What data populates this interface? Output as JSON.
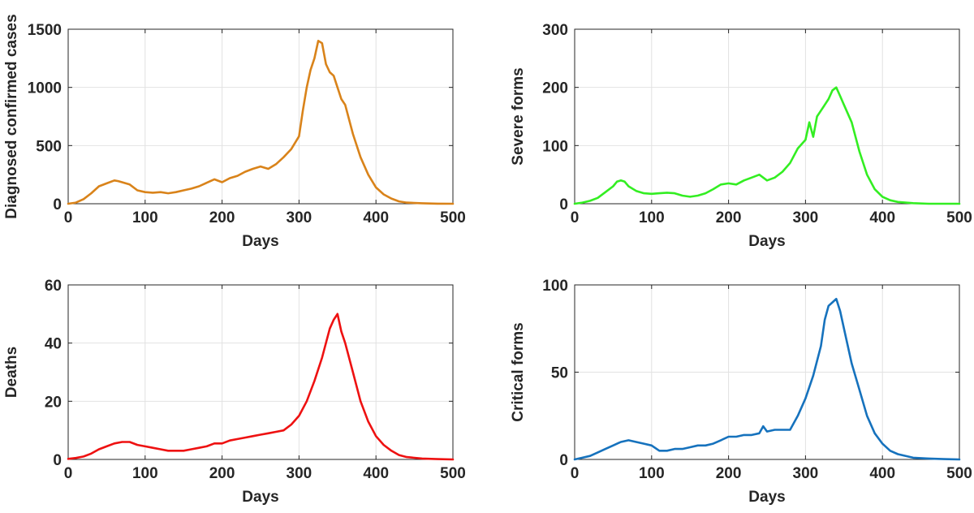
{
  "chart_data": [
    {
      "type": "line",
      "xlabel": "Days",
      "ylabel": "Diagnosed confirmed cases",
      "xlim": [
        0,
        500
      ],
      "ylim": [
        0,
        1500
      ],
      "xticks": [
        0,
        100,
        200,
        300,
        400,
        500
      ],
      "yticks": [
        0,
        500,
        1000,
        1500
      ],
      "grid": true,
      "color": "#D9831A",
      "series": [
        {
          "x": [
            0,
            10,
            20,
            30,
            40,
            50,
            60,
            65,
            70,
            80,
            90,
            100,
            110,
            120,
            130,
            140,
            150,
            160,
            170,
            180,
            190,
            200,
            210,
            220,
            230,
            240,
            250,
            260,
            270,
            280,
            290,
            300,
            305,
            310,
            315,
            320,
            325,
            330,
            335,
            340,
            345,
            350,
            355,
            360,
            370,
            380,
            390,
            400,
            410,
            420,
            430,
            440,
            460,
            480,
            500
          ],
          "y": [
            0,
            10,
            40,
            90,
            150,
            175,
            200,
            195,
            185,
            165,
            115,
            100,
            95,
            100,
            90,
            100,
            115,
            130,
            150,
            180,
            210,
            185,
            220,
            240,
            275,
            300,
            320,
            300,
            340,
            400,
            470,
            580,
            800,
            1000,
            1150,
            1250,
            1400,
            1380,
            1200,
            1130,
            1100,
            1000,
            900,
            850,
            600,
            400,
            250,
            140,
            80,
            45,
            20,
            10,
            4,
            1,
            0
          ]
        }
      ]
    },
    {
      "type": "line",
      "xlabel": "Days",
      "ylabel": "Severe forms",
      "xlim": [
        0,
        500
      ],
      "ylim": [
        0,
        300
      ],
      "xticks": [
        0,
        100,
        200,
        300,
        400,
        500
      ],
      "yticks": [
        0,
        100,
        200,
        300
      ],
      "grid": true,
      "color": "#33EE22",
      "series": [
        {
          "x": [
            0,
            10,
            20,
            30,
            40,
            50,
            55,
            60,
            65,
            70,
            80,
            90,
            100,
            110,
            120,
            130,
            140,
            150,
            160,
            170,
            180,
            190,
            200,
            210,
            220,
            230,
            240,
            250,
            260,
            270,
            280,
            290,
            300,
            305,
            310,
            315,
            320,
            325,
            330,
            335,
            340,
            345,
            350,
            360,
            370,
            380,
            390,
            400,
            410,
            420,
            440,
            460,
            480,
            500
          ],
          "y": [
            0,
            2,
            5,
            10,
            20,
            30,
            38,
            40,
            38,
            30,
            22,
            18,
            17,
            18,
            19,
            18,
            14,
            12,
            14,
            18,
            25,
            33,
            35,
            33,
            40,
            45,
            50,
            40,
            45,
            55,
            70,
            95,
            110,
            140,
            115,
            150,
            160,
            170,
            180,
            195,
            200,
            185,
            170,
            140,
            90,
            50,
            25,
            12,
            6,
            3,
            1,
            0,
            0,
            0
          ]
        }
      ]
    },
    {
      "type": "line",
      "xlabel": "Days",
      "ylabel": "Deaths",
      "xlim": [
        0,
        500
      ],
      "ylim": [
        0,
        60
      ],
      "xticks": [
        0,
        100,
        200,
        300,
        400,
        500
      ],
      "yticks": [
        0,
        20,
        40,
        60
      ],
      "grid": true,
      "color": "#EE1111",
      "series": [
        {
          "x": [
            0,
            10,
            20,
            30,
            40,
            50,
            60,
            70,
            80,
            90,
            100,
            110,
            120,
            130,
            140,
            150,
            160,
            170,
            180,
            190,
            200,
            210,
            220,
            230,
            240,
            250,
            260,
            270,
            280,
            290,
            300,
            310,
            320,
            330,
            340,
            345,
            350,
            355,
            360,
            370,
            380,
            390,
            400,
            410,
            420,
            430,
            440,
            460,
            480,
            500
          ],
          "y": [
            0.2,
            0.5,
            1,
            2,
            3.5,
            4.5,
            5.5,
            6,
            6,
            5,
            4.5,
            4,
            3.5,
            3,
            3,
            3,
            3.5,
            4,
            4.5,
            5.5,
            5.5,
            6.5,
            7,
            7.5,
            8,
            8.5,
            9,
            9.5,
            10,
            12,
            15,
            20,
            27,
            35,
            45,
            48,
            50,
            44,
            40,
            30,
            20,
            13,
            8,
            5,
            3,
            1.5,
            0.8,
            0.3,
            0.1,
            0
          ]
        }
      ]
    },
    {
      "type": "line",
      "xlabel": "Days",
      "ylabel": "Critical forms",
      "xlim": [
        0,
        500
      ],
      "ylim": [
        0,
        100
      ],
      "xticks": [
        0,
        100,
        200,
        300,
        400,
        500
      ],
      "yticks": [
        0,
        50,
        100
      ],
      "grid": true,
      "color": "#1672BD",
      "series": [
        {
          "x": [
            0,
            10,
            20,
            30,
            40,
            50,
            60,
            70,
            80,
            90,
            100,
            110,
            120,
            130,
            140,
            150,
            160,
            170,
            180,
            190,
            200,
            210,
            220,
            230,
            240,
            245,
            250,
            260,
            270,
            280,
            290,
            300,
            310,
            320,
            325,
            330,
            335,
            340,
            345,
            350,
            360,
            370,
            380,
            390,
            400,
            410,
            420,
            440,
            460,
            480,
            500
          ],
          "y": [
            0,
            1,
            2,
            4,
            6,
            8,
            10,
            11,
            10,
            9,
            8,
            5,
            5,
            6,
            6,
            7,
            8,
            8,
            9,
            11,
            13,
            13,
            14,
            14,
            15,
            19,
            16,
            17,
            17,
            17,
            25,
            35,
            48,
            65,
            80,
            88,
            90,
            92,
            85,
            75,
            55,
            40,
            25,
            15,
            9,
            5,
            3,
            1,
            0.5,
            0.2,
            0
          ]
        }
      ]
    }
  ]
}
